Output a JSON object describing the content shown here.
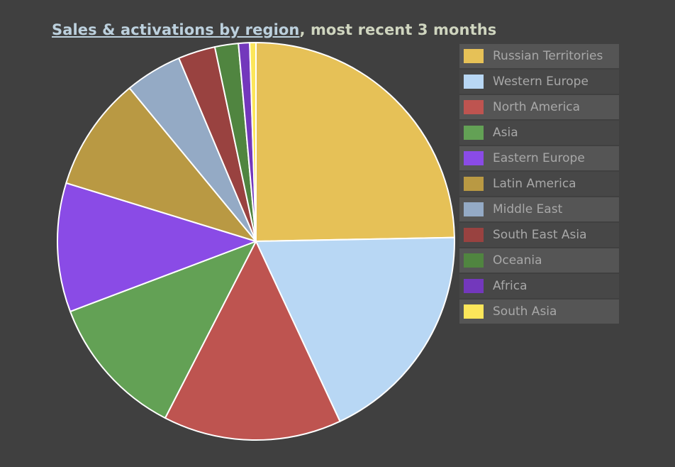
{
  "title": {
    "link_text": "Sales & activations by region",
    "rest_text": ", most recent 3 months"
  },
  "chart_data": {
    "type": "pie",
    "title": "Sales & activations by region, most recent 3 months",
    "legend_position": "right",
    "slices": [
      {
        "label": "Russian Territories",
        "value": 24.5,
        "color": "#e6c157"
      },
      {
        "label": "Western Europe",
        "value": 18.2,
        "color": "#b8d7f4"
      },
      {
        "label": "North America",
        "value": 14.4,
        "color": "#be5450"
      },
      {
        "label": "Asia",
        "value": 11.6,
        "color": "#63a155"
      },
      {
        "label": "Eastern Europe",
        "value": 10.4,
        "color": "#8a4be6"
      },
      {
        "label": "Latin America",
        "value": 9.2,
        "color": "#b99943"
      },
      {
        "label": "Middle East",
        "value": 4.6,
        "color": "#94aac5"
      },
      {
        "label": "South East Asia",
        "value": 3.0,
        "color": "#994240"
      },
      {
        "label": "Oceania",
        "value": 1.9,
        "color": "#508540"
      },
      {
        "label": "Africa",
        "value": 0.9,
        "color": "#7338bc"
      },
      {
        "label": "South Asia",
        "value": 0.5,
        "color": "#fce65a"
      }
    ]
  }
}
